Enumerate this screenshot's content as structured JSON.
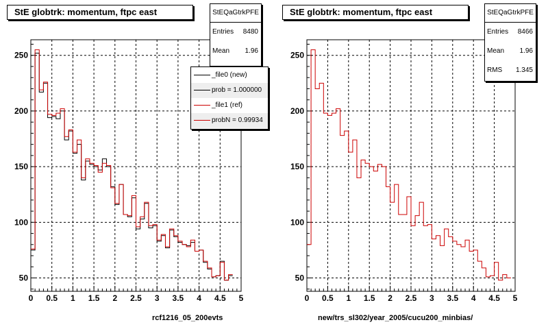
{
  "colors": {
    "new": "#000000",
    "ref": "#cc0000"
  },
  "left_panel": {
    "title": "StE globtrk: momentum, ftpc east",
    "stats": {
      "name": "StEQaGtrkPFE",
      "entries_label": "Entries",
      "entries_value": "8480",
      "mean_label": "Mean",
      "mean_value": "1.96"
    },
    "legend": [
      {
        "text": "_file0 (new)",
        "color": "#000000"
      },
      {
        "text": "prob = 1.000000",
        "color": "#000000"
      },
      {
        "text": "_file1 (ref)",
        "color": "#cc0000"
      },
      {
        "text": "probN = 0.99934",
        "color": "#cc0000"
      }
    ],
    "footer": "rcf1216_05_200evts"
  },
  "right_panel": {
    "title": "StE globtrk: momentum, ftpc east",
    "stats": {
      "name": "StEQaGtrkPFE",
      "entries_label": "Entries",
      "entries_value": "8466",
      "mean_label": "Mean",
      "mean_value": "1.96",
      "rms_label": "RMS",
      "rms_value": "1.345"
    },
    "footer": "new/trs_sl302/year_2005/cucu200_minbias/"
  },
  "chart_data": [
    {
      "type": "histogram",
      "title": "StE globtrk: momentum, ftpc east",
      "xlim": [
        0,
        5
      ],
      "ylim": [
        38,
        264
      ],
      "x_ticks": [
        0,
        0.5,
        1,
        1.5,
        2,
        2.5,
        3,
        3.5,
        4,
        4.5,
        5
      ],
      "y_ticks": [
        50,
        100,
        150,
        200,
        250
      ],
      "grid": true,
      "bin_width": 0.1,
      "series": [
        {
          "name": "_file0 (new)",
          "color": "#000000",
          "values": [
            75,
            252,
            217,
            225,
            194,
            195,
            193,
            200,
            174,
            182,
            162,
            170,
            138,
            155,
            152,
            150,
            147,
            157,
            150,
            132,
            116,
            134,
            107,
            105,
            122,
            94,
            103,
            117,
            95,
            97,
            83,
            88,
            77,
            93,
            87,
            82,
            80,
            79,
            82,
            74,
            75,
            64,
            58,
            51,
            52,
            65,
            48,
            52
          ]
        },
        {
          "name": "_file1 (ref)",
          "color": "#cc0000",
          "values": [
            76,
            255,
            219,
            226,
            197,
            196,
            198,
            202,
            177,
            183,
            163,
            174,
            140,
            157,
            153,
            151,
            145,
            153,
            151,
            131,
            117,
            134,
            107,
            106,
            124,
            96,
            105,
            118,
            97,
            98,
            84,
            89,
            78,
            94,
            88,
            83,
            80,
            78,
            84,
            74,
            75,
            65,
            59,
            51,
            52,
            64,
            48,
            53
          ]
        }
      ]
    },
    {
      "type": "histogram",
      "title": "StE globtrk: momentum, ftpc east",
      "xlim": [
        0,
        5
      ],
      "ylim": [
        38,
        264
      ],
      "x_ticks": [
        0,
        0.5,
        1,
        1.5,
        2,
        2.5,
        3,
        3.5,
        4,
        4.5,
        5
      ],
      "y_ticks": [
        50,
        100,
        150,
        200,
        250
      ],
      "grid": true,
      "bin_width": 0.1,
      "series": [
        {
          "color": "#cc0000",
          "values": [
            80,
            255,
            220,
            225,
            198,
            196,
            198,
            202,
            178,
            182,
            163,
            174,
            140,
            156,
            153,
            150,
            146,
            152,
            150,
            132,
            118,
            134,
            107,
            107,
            123,
            97,
            106,
            118,
            97,
            98,
            85,
            88,
            79,
            94,
            87,
            83,
            80,
            78,
            84,
            74,
            75,
            65,
            59,
            51,
            52,
            64,
            48,
            53,
            50
          ]
        }
      ]
    }
  ]
}
